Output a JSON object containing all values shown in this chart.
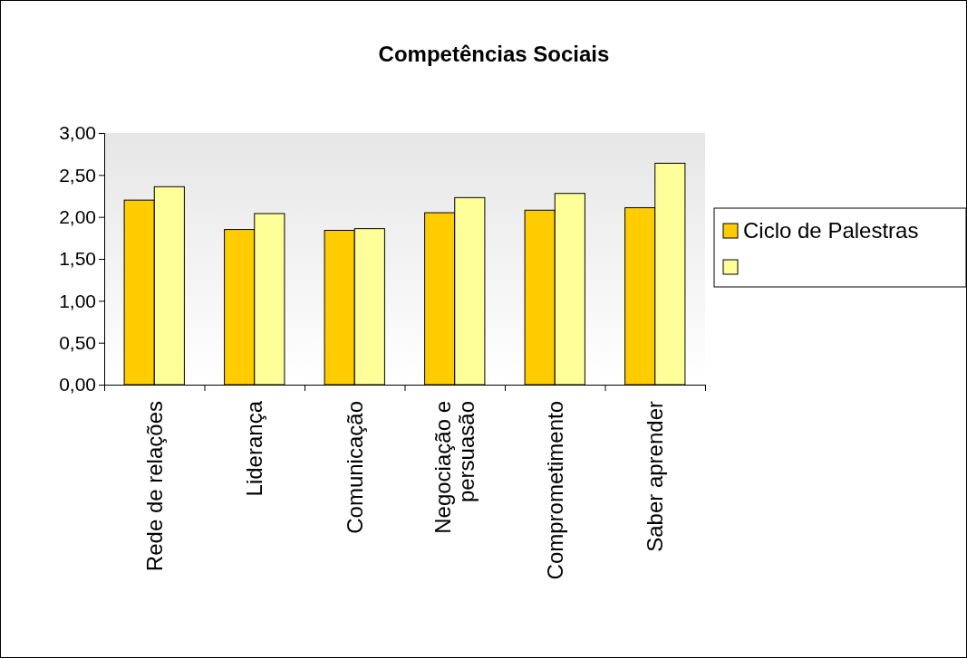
{
  "chart_data": {
    "type": "bar",
    "title": "Competências Sociais",
    "categories": [
      "Rede de relações",
      "Liderança",
      "Comunicação",
      "Negociação e persuasão",
      "Comprometimento",
      "Saber aprender"
    ],
    "series": [
      {
        "name": "Ciclo de Palestras",
        "color": "#ffcc00",
        "values": [
          2.2,
          1.85,
          1.84,
          2.05,
          2.08,
          2.11
        ]
      },
      {
        "color": "#ffff99",
        "values": [
          2.36,
          2.04,
          1.86,
          2.23,
          2.28,
          2.64
        ]
      }
    ],
    "ylim": [
      0,
      3
    ],
    "yticks": [
      {
        "value": 0,
        "label": "0,00"
      },
      {
        "value": 0.5,
        "label": "0,50"
      },
      {
        "value": 1,
        "label": "1,00"
      },
      {
        "value": 1.5,
        "label": "1,50"
      },
      {
        "value": 2,
        "label": "2,00"
      },
      {
        "value": 2.5,
        "label": "2,50"
      },
      {
        "value": 3,
        "label": "3,00"
      }
    ],
    "grid": false,
    "legend": "right"
  }
}
